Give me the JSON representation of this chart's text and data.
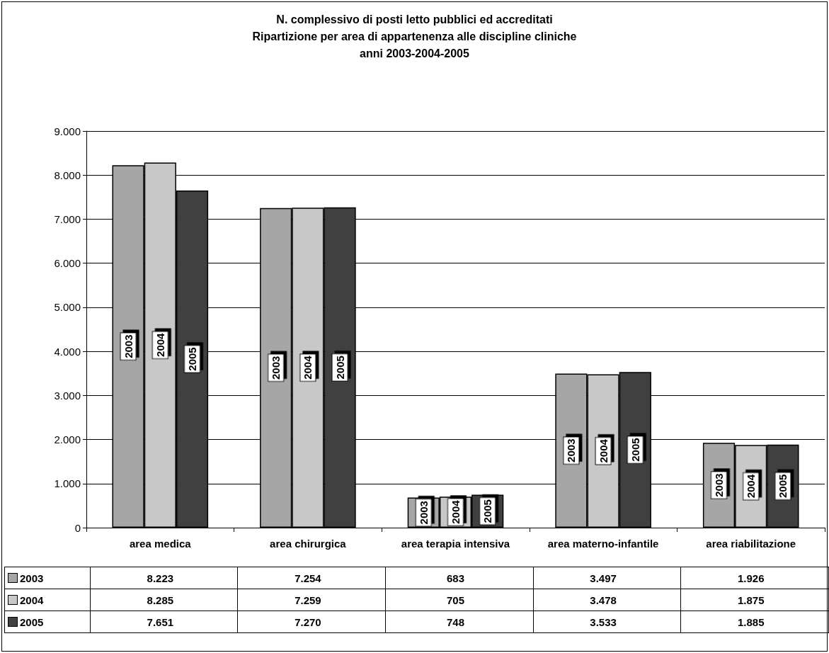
{
  "chart_data": {
    "type": "bar",
    "title": "N. complessivo di posti letto pubblici ed accreditati\nRipartizione per area di appartenenza alle discipline cliniche\nanni 2003-2004-2005",
    "categories": [
      "area medica",
      "area chirurgica",
      "area terapia intensiva",
      "area materno-infantile",
      "area riabilitazione"
    ],
    "series": [
      {
        "name": "2003",
        "color": "#a6a6a6",
        "values": [
          8223,
          7254,
          683,
          3497,
          1926
        ],
        "value_labels": [
          "8.223",
          "7.254",
          "683",
          "3.497",
          "1.926"
        ]
      },
      {
        "name": "2004",
        "color": "#c8c8c8",
        "values": [
          8285,
          7259,
          705,
          3478,
          1875
        ],
        "value_labels": [
          "8.285",
          "7.259",
          "705",
          "3.478",
          "1.875"
        ]
      },
      {
        "name": "2005",
        "color": "#404040",
        "values": [
          7651,
          7270,
          748,
          3533,
          1885
        ],
        "value_labels": [
          "7.651",
          "7.270",
          "748",
          "3.533",
          "1.885"
        ]
      }
    ],
    "ylim": [
      0,
      9000
    ],
    "yticks": [
      {
        "value": 0,
        "label": "0"
      },
      {
        "value": 1000,
        "label": "1.000"
      },
      {
        "value": 2000,
        "label": "2.000"
      },
      {
        "value": 3000,
        "label": "3.000"
      },
      {
        "value": 4000,
        "label": "4.000"
      },
      {
        "value": 5000,
        "label": "5.000"
      },
      {
        "value": 6000,
        "label": "6.000"
      },
      {
        "value": 7000,
        "label": "7.000"
      },
      {
        "value": 8000,
        "label": "8.000"
      },
      {
        "value": 9000,
        "label": "9.000"
      }
    ],
    "grid": "y",
    "legend": "bottom left"
  }
}
